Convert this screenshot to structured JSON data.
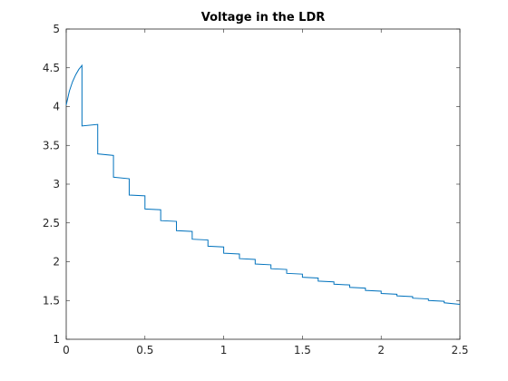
{
  "chart_data": {
    "type": "line",
    "title": "Voltage in the LDR",
    "x": [
      0,
      0.02,
      0.04,
      0.06,
      0.08,
      0.1,
      0.1,
      0.2,
      0.2,
      0.3,
      0.3,
      0.4,
      0.4,
      0.5,
      0.5,
      0.6,
      0.6,
      0.7,
      0.7,
      0.8,
      0.8,
      0.9,
      0.9,
      1.0,
      1.0,
      1.1,
      1.1,
      1.2,
      1.2,
      1.3,
      1.3,
      1.4,
      1.4,
      1.5,
      1.5,
      1.6,
      1.6,
      1.7,
      1.7,
      1.8,
      1.8,
      1.9,
      1.9,
      2.0,
      2.0,
      2.1,
      2.1,
      2.2,
      2.2,
      2.3,
      2.3,
      2.4,
      2.4,
      2.5
    ],
    "values": [
      4.02,
      4.2,
      4.32,
      4.41,
      4.48,
      4.53,
      3.75,
      3.77,
      3.39,
      3.37,
      3.09,
      3.07,
      2.86,
      2.85,
      2.68,
      2.67,
      2.53,
      2.52,
      2.4,
      2.39,
      2.29,
      2.28,
      2.2,
      2.19,
      2.11,
      2.1,
      2.04,
      2.03,
      1.97,
      1.96,
      1.91,
      1.9,
      1.85,
      1.84,
      1.8,
      1.79,
      1.75,
      1.74,
      1.71,
      1.7,
      1.67,
      1.66,
      1.63,
      1.62,
      1.59,
      1.58,
      1.56,
      1.55,
      1.53,
      1.52,
      1.5,
      1.49,
      1.47,
      1.45
    ],
    "color": "#0072bd",
    "xlim": [
      0,
      2.5
    ],
    "xticks": [
      0,
      0.5,
      1,
      1.5,
      2,
      2.5
    ],
    "ylim": [
      1,
      5
    ],
    "yticks": [
      1,
      1.5,
      2,
      2.5,
      3,
      3.5,
      4,
      4.5,
      5
    ]
  }
}
